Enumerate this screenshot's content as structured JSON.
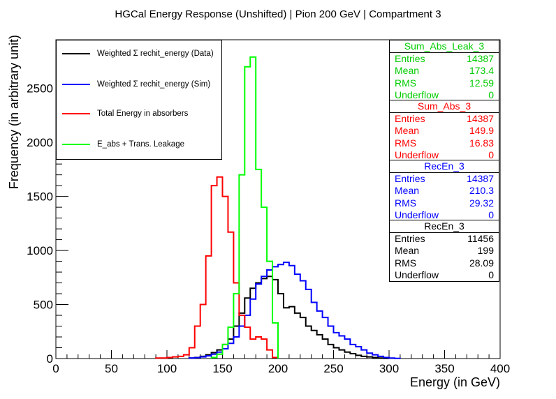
{
  "chart_data": {
    "type": "histogram",
    "title": "HGCal Energy Response (Unshifted) | Pion 200 GeV | Compartment 3",
    "xlabel": "Energy (in GeV)",
    "ylabel": "Frequency (in arbitrary unit)",
    "xlim": [
      0,
      400
    ],
    "ylim": [
      0,
      2950
    ],
    "xticks": [
      0,
      50,
      100,
      150,
      200,
      250,
      300,
      350,
      400
    ],
    "yticks": [
      0,
      500,
      1000,
      1500,
      2000,
      2500
    ],
    "bin_width": 5,
    "series": [
      {
        "name": "Weighted Σ rechit_energy (Data)",
        "color": "#000000",
        "bin_starts": [
          120,
          125,
          130,
          135,
          140,
          145,
          150,
          155,
          160,
          165,
          170,
          175,
          180,
          185,
          190,
          195,
          200,
          205,
          210,
          215,
          220,
          225,
          230,
          235,
          240,
          245,
          250,
          255,
          260,
          265,
          270,
          275,
          280,
          285,
          290,
          295
        ],
        "values": [
          5,
          10,
          20,
          35,
          55,
          80,
          130,
          180,
          300,
          420,
          560,
          650,
          700,
          740,
          760,
          730,
          600,
          470,
          480,
          420,
          380,
          300,
          260,
          220,
          180,
          130,
          100,
          80,
          60,
          45,
          30,
          20,
          15,
          10,
          5,
          2
        ]
      },
      {
        "name": "Weighted Σ rechit_energy (Sim)",
        "color": "#0000ff",
        "bin_starts": [
          120,
          125,
          130,
          135,
          140,
          145,
          150,
          155,
          160,
          165,
          170,
          175,
          180,
          185,
          190,
          195,
          200,
          205,
          210,
          215,
          220,
          225,
          230,
          235,
          240,
          245,
          250,
          255,
          260,
          265,
          270,
          275,
          280,
          285,
          290,
          295,
          300,
          305
        ],
        "values": [
          5,
          8,
          15,
          25,
          40,
          60,
          90,
          140,
          200,
          300,
          400,
          550,
          690,
          760,
          820,
          850,
          870,
          890,
          860,
          780,
          720,
          640,
          520,
          440,
          380,
          300,
          240,
          210,
          180,
          130,
          110,
          80,
          50,
          35,
          20,
          10,
          5,
          2
        ]
      },
      {
        "name": "Total Energy in absorbers",
        "color": "#ff0000",
        "bin_starts": [
          90,
          95,
          100,
          105,
          110,
          115,
          120,
          125,
          130,
          135,
          140,
          145,
          150,
          155,
          160,
          165,
          170,
          175,
          180,
          185,
          190,
          195
        ],
        "values": [
          5,
          5,
          10,
          15,
          20,
          35,
          100,
          300,
          500,
          950,
          1600,
          1680,
          1500,
          1170,
          700,
          400,
          290,
          180,
          200,
          180,
          80,
          10
        ]
      },
      {
        "name": "E_abs + Trans. Leakage",
        "color": "#00ff00",
        "bin_starts": [
          140,
          145,
          150,
          155,
          160,
          165,
          170,
          175,
          180,
          185,
          190,
          195
        ],
        "values": [
          10,
          40,
          130,
          290,
          600,
          1700,
          2700,
          2790,
          1750,
          1400,
          900,
          330
        ]
      }
    ],
    "legend_position": "top-left",
    "stats_boxes": [
      {
        "title": "Sum_Abs_Leak_3",
        "color": "#00ff00",
        "entries": "14387",
        "mean": "173.4",
        "rms": "12.59",
        "underflow": "0"
      },
      {
        "title": "Sum_Abs_3",
        "color": "#ff0000",
        "entries": "14387",
        "mean": "149.9",
        "rms": "16.83",
        "underflow": "0"
      },
      {
        "title": "RecEn_3",
        "color": "#0000ff",
        "entries": "14387",
        "mean": "210.3",
        "rms": "29.32",
        "underflow": "0"
      },
      {
        "title": "RecEn_3",
        "color": "#000000",
        "entries": "11456",
        "mean": "199",
        "rms": "28.09",
        "underflow": "0"
      }
    ],
    "stat_labels": {
      "entries": "Entries",
      "mean": "Mean",
      "rms": "RMS",
      "underflow": "Underflow"
    },
    "grid": false
  }
}
